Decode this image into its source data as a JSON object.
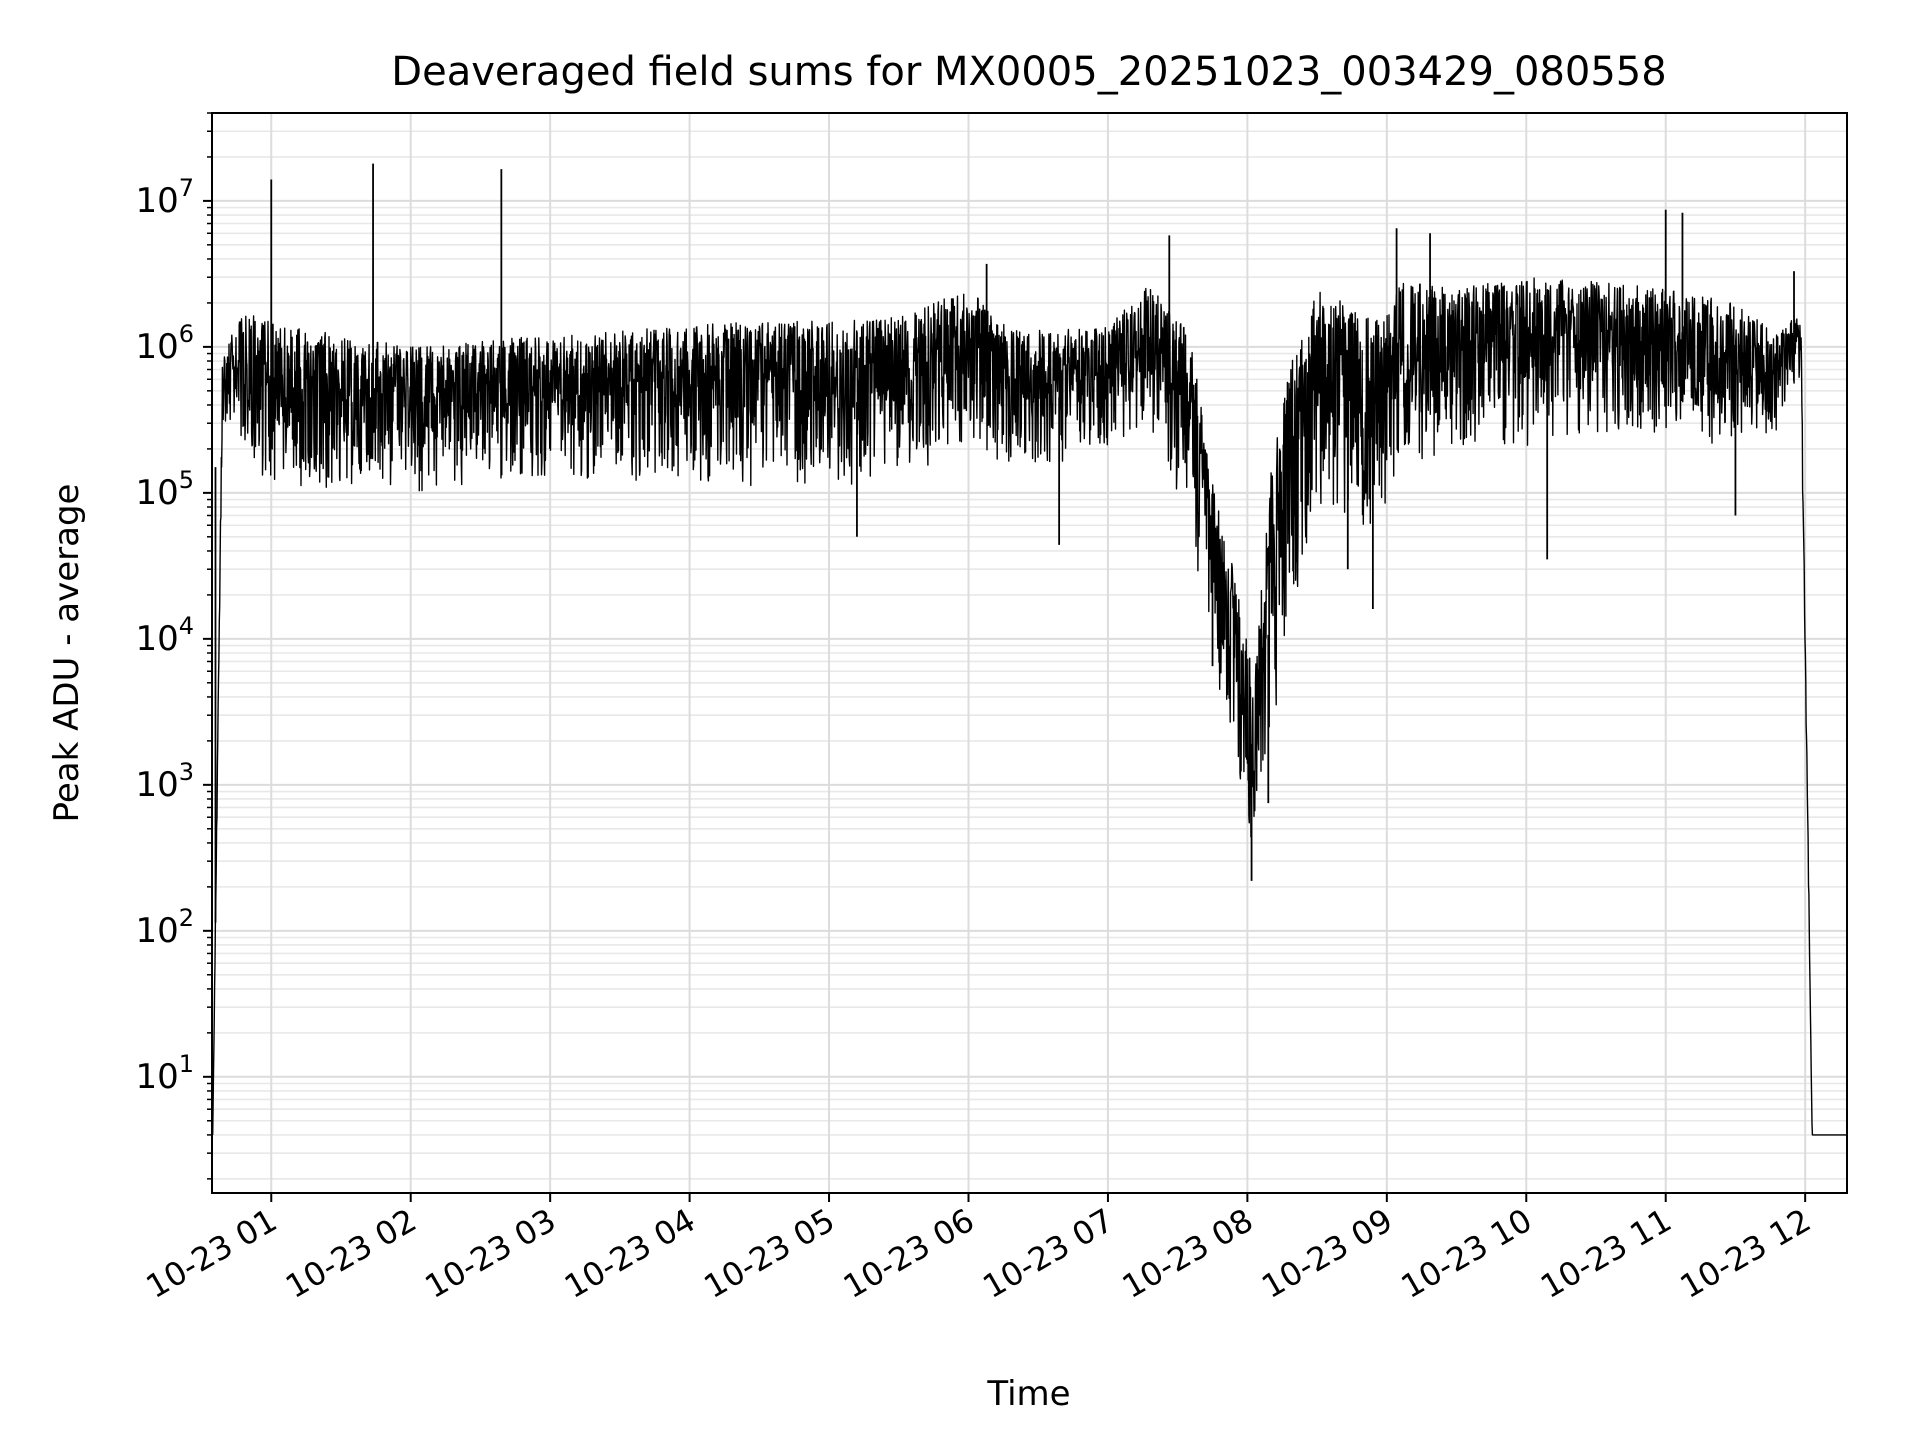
{
  "chart_data": {
    "type": "line",
    "title": "Deaveraged field sums for MX0005_20251023_003429_080558",
    "xlabel": "Time",
    "ylabel": "Peak ADU - average",
    "yscale": "log",
    "ylim": [
      1.6,
      40000000
    ],
    "xlim": [
      0.575,
      12.3
    ],
    "grid": true,
    "x_ticks": [
      {
        "value": 1,
        "label": "10-23 01"
      },
      {
        "value": 2,
        "label": "10-23 02"
      },
      {
        "value": 3,
        "label": "10-23 03"
      },
      {
        "value": 4,
        "label": "10-23 04"
      },
      {
        "value": 5,
        "label": "10-23 05"
      },
      {
        "value": 6,
        "label": "10-23 06"
      },
      {
        "value": 7,
        "label": "10-23 07"
      },
      {
        "value": 8,
        "label": "10-23 08"
      },
      {
        "value": 9,
        "label": "10-23 09"
      },
      {
        "value": 10,
        "label": "10-23 10"
      },
      {
        "value": 11,
        "label": "10-23 11"
      },
      {
        "value": 12,
        "label": "10-23 12"
      }
    ],
    "y_ticks": [
      {
        "value": 10,
        "base": "10",
        "exp": "1"
      },
      {
        "value": 100,
        "base": "10",
        "exp": "2"
      },
      {
        "value": 1000,
        "base": "10",
        "exp": "3"
      },
      {
        "value": 10000,
        "base": "10",
        "exp": "4"
      },
      {
        "value": 100000,
        "base": "10",
        "exp": "5"
      },
      {
        "value": 1000000,
        "base": "10",
        "exp": "6"
      },
      {
        "value": 10000000,
        "base": "10",
        "exp": "7"
      }
    ],
    "series": [
      {
        "name": "deaveraged field sum",
        "color": "#000000",
        "envelope": {
          "x": [
            0.58,
            0.65,
            0.75,
            0.85,
            1.0,
            1.5,
            2.0,
            2.5,
            3.0,
            3.5,
            4.0,
            4.5,
            5.0,
            5.5,
            6.0,
            6.3,
            6.6,
            7.0,
            7.3,
            7.6,
            7.75,
            7.9,
            8.05,
            8.2,
            8.35,
            8.5,
            8.7,
            8.9,
            9.1,
            9.5,
            10.0,
            10.5,
            11.0,
            11.5,
            11.8,
            11.97,
            12.05,
            12.3
          ],
          "high": [
            4,
            800000,
            1500000,
            1700000,
            1500000,
            1200000,
            1000000,
            1100000,
            1200000,
            1300000,
            1400000,
            1500000,
            1500000,
            1600000,
            2500000,
            1300000,
            1300000,
            1400000,
            2800000,
            1200000,
            120000,
            30000,
            6000,
            300000,
            1000000,
            2500000,
            2000000,
            1500000,
            2800000,
            2500000,
            3000000,
            2800000,
            2500000,
            2000000,
            1200000,
            1800000,
            4,
            4
          ],
          "low": [
            4,
            300000,
            300000,
            120000,
            110000,
            100000,
            100000,
            110000,
            120000,
            120000,
            120000,
            110000,
            110000,
            120000,
            200000,
            150000,
            150000,
            200000,
            250000,
            50000,
            8000,
            1500,
            300,
            3000,
            20000,
            60000,
            60000,
            50000,
            150000,
            200000,
            200000,
            220000,
            250000,
            200000,
            250000,
            600000,
            4,
            4
          ]
        },
        "spikes": [
          {
            "x": 0.6,
            "value": 150000
          },
          {
            "x": 1.0,
            "value": 14000000
          },
          {
            "x": 1.73,
            "value": 18000000
          },
          {
            "x": 2.65,
            "value": 16500000
          },
          {
            "x": 5.2,
            "value": 50000
          },
          {
            "x": 6.13,
            "value": 3700000
          },
          {
            "x": 6.65,
            "value": 44000
          },
          {
            "x": 7.44,
            "value": 5800000
          },
          {
            "x": 7.75,
            "value": 6500
          },
          {
            "x": 8.03,
            "value": 220
          },
          {
            "x": 8.15,
            "value": 750
          },
          {
            "x": 8.72,
            "value": 30000
          },
          {
            "x": 8.9,
            "value": 16000
          },
          {
            "x": 9.07,
            "value": 6500000
          },
          {
            "x": 9.31,
            "value": 6000000
          },
          {
            "x": 10.15,
            "value": 35000
          },
          {
            "x": 11.0,
            "value": 8700000
          },
          {
            "x": 11.12,
            "value": 8300000
          },
          {
            "x": 11.5,
            "value": 70000
          },
          {
            "x": 11.92,
            "value": 3300000
          }
        ]
      }
    ]
  }
}
